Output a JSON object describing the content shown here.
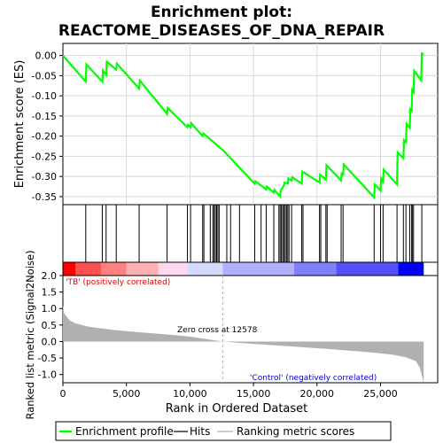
{
  "chart_data": {
    "type": "line",
    "title_line1": "Enrichment plot:",
    "title_line2": "REACTOME_DISEASES_OF_DNA_REPAIR",
    "es_panel": {
      "ylabel": "Enrichment score (ES)",
      "ylim": [
        -0.37,
        0.03
      ],
      "yticks": [
        0.0,
        -0.05,
        -0.1,
        -0.15,
        -0.2,
        -0.25,
        -0.3,
        -0.35
      ],
      "ytick_labels": [
        "0.00",
        "-0.05",
        "-0.10",
        "-0.15",
        "-0.20",
        "-0.25",
        "-0.30",
        "-0.35"
      ],
      "line_color": "#00ff00",
      "profile": [
        [
          0,
          0.0
        ],
        [
          1800,
          -0.065
        ],
        [
          1850,
          -0.022
        ],
        [
          3100,
          -0.065
        ],
        [
          3150,
          -0.037
        ],
        [
          3400,
          -0.048
        ],
        [
          3450,
          -0.015
        ],
        [
          4200,
          -0.035
        ],
        [
          4250,
          -0.02
        ],
        [
          6000,
          -0.082
        ],
        [
          6050,
          -0.062
        ],
        [
          8200,
          -0.145
        ],
        [
          8250,
          -0.13
        ],
        [
          9800,
          -0.178
        ],
        [
          9850,
          -0.172
        ],
        [
          10050,
          -0.178
        ],
        [
          10100,
          -0.168
        ],
        [
          11000,
          -0.2
        ],
        [
          11050,
          -0.193
        ],
        [
          12600,
          -0.235
        ],
        [
          15100,
          -0.318
        ],
        [
          15150,
          -0.312
        ],
        [
          16000,
          -0.332
        ],
        [
          16050,
          -0.325
        ],
        [
          16600,
          -0.34
        ],
        [
          16650,
          -0.333
        ],
        [
          16900,
          -0.343
        ],
        [
          17100,
          -0.35
        ],
        [
          17150,
          -0.335
        ],
        [
          17400,
          -0.322
        ],
        [
          17450,
          -0.315
        ],
        [
          17700,
          -0.318
        ],
        [
          17750,
          -0.305
        ],
        [
          18000,
          -0.31
        ],
        [
          18050,
          -0.302
        ],
        [
          18800,
          -0.318
        ],
        [
          18850,
          -0.288
        ],
        [
          20200,
          -0.315
        ],
        [
          20250,
          -0.295
        ],
        [
          20700,
          -0.308
        ],
        [
          20750,
          -0.272
        ],
        [
          21900,
          -0.31
        ],
        [
          21950,
          -0.29
        ],
        [
          22050,
          -0.298
        ],
        [
          22100,
          -0.27
        ],
        [
          24500,
          -0.352
        ],
        [
          24550,
          -0.32
        ],
        [
          25000,
          -0.335
        ],
        [
          25050,
          -0.305
        ],
        [
          25200,
          -0.312
        ],
        [
          25250,
          -0.283
        ],
        [
          26300,
          -0.32
        ],
        [
          26350,
          -0.24
        ],
        [
          26800,
          -0.255
        ],
        [
          26850,
          -0.21
        ],
        [
          27000,
          -0.215
        ],
        [
          27050,
          -0.17
        ],
        [
          27300,
          -0.18
        ],
        [
          27350,
          -0.13
        ],
        [
          27450,
          -0.14
        ],
        [
          27500,
          -0.085
        ],
        [
          27600,
          -0.09
        ],
        [
          27650,
          -0.038
        ],
        [
          28200,
          -0.062
        ],
        [
          28250,
          0.005
        ],
        [
          28400,
          0.002
        ]
      ]
    },
    "hits_panel": {
      "hits": [
        1800,
        3100,
        3400,
        4200,
        6000,
        8200,
        9800,
        10050,
        11000,
        11100,
        11600,
        11800,
        11900,
        12000,
        12100,
        12200,
        12300,
        12900,
        13200,
        13900,
        15100,
        15600,
        16000,
        16600,
        17000,
        17100,
        17200,
        17300,
        17400,
        17500,
        17600,
        17700,
        17800,
        18000,
        18800,
        18900,
        20200,
        20300,
        20700,
        20800,
        21900,
        22050,
        24500,
        25000,
        25200,
        26300,
        26800,
        27000,
        27300,
        27450,
        27500,
        27600,
        28250
      ]
    },
    "bar_panel": {
      "colors": [
        "#ff0000",
        "#ff5050",
        "#ff8080",
        "#ffb0b0",
        "#ffd8f0",
        "#d8d8ff",
        "#b0b0ff",
        "#8080ff",
        "#5050ff",
        "#0000ff"
      ],
      "breaks": [
        0,
        1000,
        3000,
        5000,
        7500,
        9800,
        12578,
        18200,
        21500,
        26400,
        28400
      ]
    },
    "metric_panel": {
      "ylabel": "Ranked list metric (Signal2Noise)",
      "ylim": [
        -1.25,
        2.0
      ],
      "yticks": [
        2.0,
        1.5,
        1.0,
        0.5,
        0.0,
        -0.5,
        -1.0
      ],
      "ytick_labels": [
        "2.0",
        "1.5",
        "1.0",
        "0.5",
        "0.0",
        "-0.5",
        "-1.0"
      ],
      "zero_cross_label": "Zero cross at 12578",
      "zero_cross": 12578,
      "pos_label": "'TB' (positively correlated)",
      "neg_label": "'Control' (negatively correlated)",
      "curve": [
        [
          0,
          1.1
        ],
        [
          100,
          0.85
        ],
        [
          500,
          0.65
        ],
        [
          1000,
          0.55
        ],
        [
          2000,
          0.45
        ],
        [
          4000,
          0.35
        ],
        [
          6000,
          0.28
        ],
        [
          8000,
          0.22
        ],
        [
          10000,
          0.15
        ],
        [
          12578,
          0.0
        ],
        [
          15000,
          -0.07
        ],
        [
          18000,
          -0.15
        ],
        [
          21000,
          -0.23
        ],
        [
          24000,
          -0.32
        ],
        [
          26000,
          -0.4
        ],
        [
          27000,
          -0.48
        ],
        [
          27800,
          -0.6
        ],
        [
          28100,
          -0.8
        ],
        [
          28300,
          -1.1
        ],
        [
          28400,
          -1.25
        ]
      ]
    },
    "xaxis": {
      "xlabel": "Rank in Ordered Dataset",
      "xlim": [
        0,
        29500
      ],
      "xticks": [
        0,
        5000,
        10000,
        15000,
        20000,
        25000
      ],
      "xtick_labels": [
        "0",
        "5,000",
        "10,000",
        "15,000",
        "20,000",
        "25,000"
      ]
    },
    "legend": {
      "items": [
        "Enrichment profile",
        "Hits",
        "Ranking metric scores"
      ]
    }
  }
}
